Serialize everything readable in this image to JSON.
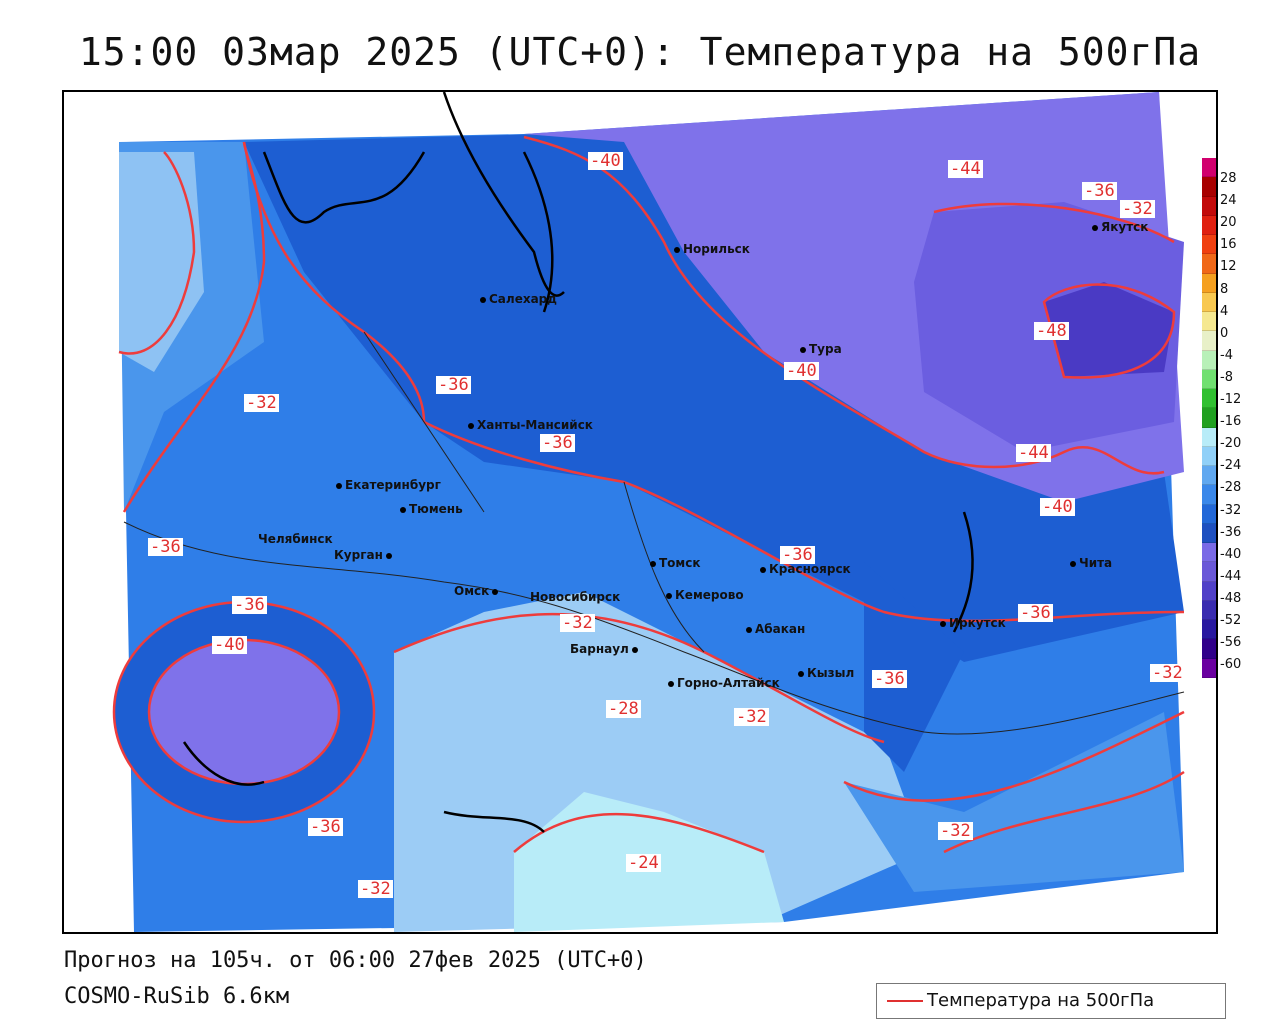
{
  "title": "15:00 03мар 2025 (UTC+0): Температура на 500гПа",
  "forecast_line": "Прогноз на 105ч. от 06:00 27фев 2025 (UTC+0)",
  "model_line": "COSMO-RuSib 6.6км",
  "legend": {
    "label": "Температура на 500гПа",
    "line_color": "#e03030"
  },
  "cities": [
    {
      "name": "Норильск"
    },
    {
      "name": "Якутск"
    },
    {
      "name": "Салехард"
    },
    {
      "name": "Тура"
    },
    {
      "name": "Ханты-Мансийск"
    },
    {
      "name": "Екатеринбург"
    },
    {
      "name": "Тюмень"
    },
    {
      "name": "Челябинск"
    },
    {
      "name": "Курган"
    },
    {
      "name": "Омск"
    },
    {
      "name": "Томск"
    },
    {
      "name": "Красноярск"
    },
    {
      "name": "Чита"
    },
    {
      "name": "Новосибирск"
    },
    {
      "name": "Кемерово"
    },
    {
      "name": "Иркутск"
    },
    {
      "name": "Абакан"
    },
    {
      "name": "Барнаул"
    },
    {
      "name": "Кызыл"
    },
    {
      "name": "Горно-Алтайск"
    }
  ],
  "contour_labels": [
    "-40",
    "-44",
    "-48",
    "-44",
    "-40",
    "-40",
    "-36",
    "-36",
    "-32",
    "-36",
    "-36",
    "-36",
    "-40",
    "-32",
    "-36",
    "-36",
    "-32",
    "-28",
    "-32",
    "-36",
    "-32",
    "-24",
    "-32",
    "-36",
    "-32"
  ],
  "colorbar": {
    "ticks": [
      "28",
      "24",
      "20",
      "16",
      "12",
      "8",
      "4",
      "0",
      "-4",
      "-8",
      "-12",
      "-16",
      "-20",
      "-24",
      "-28",
      "-32",
      "-36",
      "-40",
      "-44",
      "-48",
      "-52",
      "-56",
      "-60"
    ],
    "colors": [
      "#d1006e",
      "#a80000",
      "#c20a0a",
      "#e02010",
      "#f04010",
      "#f06818",
      "#f5a020",
      "#f8c850",
      "#f5e890",
      "#e8f0c8",
      "#b8f0b8",
      "#70e070",
      "#30c030",
      "#20a020",
      "#b8ecf8",
      "#90d0f8",
      "#60a8f0",
      "#3a88ea",
      "#2268d8",
      "#1e50c0",
      "#7a6ae6",
      "#6a58d8",
      "#5040c8",
      "#3a2cb0",
      "#2818a0",
      "#30008a",
      "#6a00a0"
    ]
  }
}
